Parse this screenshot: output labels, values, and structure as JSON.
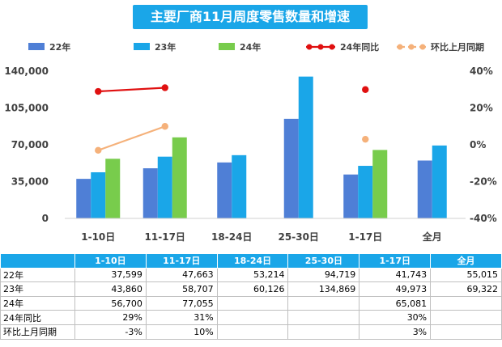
{
  "colors": {
    "s22": "#4f7fd6",
    "s23": "#1aa6e8",
    "s24": "#78cc4c",
    "yoy": "#e01010",
    "mom": "#f5b17a",
    "title_bg": "#1aa6e8"
  },
  "chart_data": {
    "type": "bar",
    "title": "主要厂商11月周度零售数量和增速",
    "categories": [
      "1-10日",
      "11-17日",
      "18-24日",
      "25-30日",
      "1-17日",
      "全月"
    ],
    "series": [
      {
        "name": "22年",
        "kind": "bar",
        "axis": "left",
        "values": [
          37599,
          47663,
          53214,
          94719,
          41743,
          55015
        ]
      },
      {
        "name": "23年",
        "kind": "bar",
        "axis": "left",
        "values": [
          43860,
          58707,
          60126,
          134869,
          49973,
          69322
        ]
      },
      {
        "name": "24年",
        "kind": "bar",
        "axis": "left",
        "values": [
          56700,
          77055,
          null,
          null,
          65081,
          null
        ]
      },
      {
        "name": "24年同比",
        "kind": "line",
        "axis": "right",
        "unit": "%",
        "values": [
          29,
          31,
          null,
          null,
          30,
          null
        ]
      },
      {
        "name": "环比上月同期",
        "kind": "line",
        "axis": "right",
        "unit": "%",
        "values": [
          -3,
          10,
          null,
          null,
          3,
          null
        ]
      }
    ],
    "y_left": {
      "min": 0,
      "max": 140000,
      "ticks": [
        "0",
        "35,000",
        "70,000",
        "105,000",
        "140,000"
      ]
    },
    "y_right": {
      "min": -40,
      "max": 40,
      "ticks": [
        "-40%",
        "-20%",
        "0%",
        "20%",
        "40%"
      ]
    },
    "legend": "top",
    "grid": false
  },
  "table": {
    "headers": [
      "",
      "1-10日",
      "11-17日",
      "18-24日",
      "25-30日",
      "1-17日",
      "全月"
    ],
    "rows": [
      {
        "label": "22年",
        "cells": [
          "37,599",
          "47,663",
          "53,214",
          "94,719",
          "41,743",
          "55,015"
        ]
      },
      {
        "label": "23年",
        "cells": [
          "43,860",
          "58,707",
          "60,126",
          "134,869",
          "49,973",
          "69,322"
        ]
      },
      {
        "label": "24年",
        "cells": [
          "56,700",
          "77,055",
          "",
          "",
          "65,081",
          ""
        ]
      },
      {
        "label": "24年同比",
        "cells": [
          "29%",
          "31%",
          "",
          "",
          "30%",
          ""
        ]
      },
      {
        "label": "环比上月同期",
        "cells": [
          "-3%",
          "10%",
          "",
          "",
          "3%",
          ""
        ]
      }
    ]
  }
}
